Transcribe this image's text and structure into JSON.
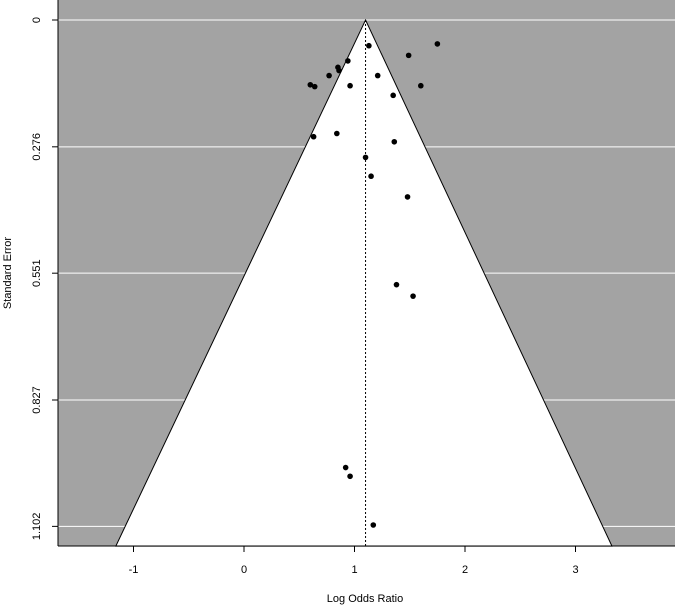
{
  "chart_data": {
    "type": "scatter",
    "title": "",
    "xlabel": "Log Odds Ratio",
    "ylabel": "Standard Error",
    "xlim": [
      -1.7,
      3.9
    ],
    "ylim": [
      0,
      1.145
    ],
    "y_reversed": true,
    "x_ticks": [
      -1,
      0,
      1,
      2,
      3
    ],
    "x_tick_labels": [
      "-1",
      "0",
      "1",
      "2",
      "3"
    ],
    "y_ticks": [
      0,
      0.276,
      0.551,
      0.827,
      1.102
    ],
    "y_tick_labels": [
      "0",
      "0.276",
      "0.551",
      "0.827",
      "1.102"
    ],
    "grid": true,
    "funnel": {
      "center": 1.1,
      "apex_se": 0,
      "base_se": 1.145,
      "base_left": -1.16,
      "base_right": 3.33,
      "outside_fill": "#a3a3a3",
      "inside_fill": "#ffffff"
    },
    "reference_line": {
      "x": 1.1,
      "style": "dotted"
    },
    "points": [
      {
        "x": 1.13,
        "y": 0.056
      },
      {
        "x": 1.75,
        "y": 0.052
      },
      {
        "x": 1.49,
        "y": 0.077
      },
      {
        "x": 0.94,
        "y": 0.089
      },
      {
        "x": 0.85,
        "y": 0.103
      },
      {
        "x": 0.86,
        "y": 0.11
      },
      {
        "x": 0.77,
        "y": 0.121
      },
      {
        "x": 1.21,
        "y": 0.121
      },
      {
        "x": 0.6,
        "y": 0.141
      },
      {
        "x": 0.64,
        "y": 0.145
      },
      {
        "x": 0.96,
        "y": 0.143
      },
      {
        "x": 1.6,
        "y": 0.143
      },
      {
        "x": 1.35,
        "y": 0.164
      },
      {
        "x": 0.84,
        "y": 0.247
      },
      {
        "x": 0.63,
        "y": 0.254
      },
      {
        "x": 1.36,
        "y": 0.265
      },
      {
        "x": 1.1,
        "y": 0.299
      },
      {
        "x": 1.15,
        "y": 0.34
      },
      {
        "x": 1.48,
        "y": 0.385
      },
      {
        "x": 1.38,
        "y": 0.576
      },
      {
        "x": 1.53,
        "y": 0.601
      },
      {
        "x": 0.92,
        "y": 0.974
      },
      {
        "x": 0.96,
        "y": 0.993
      },
      {
        "x": 1.17,
        "y": 1.099
      }
    ]
  }
}
